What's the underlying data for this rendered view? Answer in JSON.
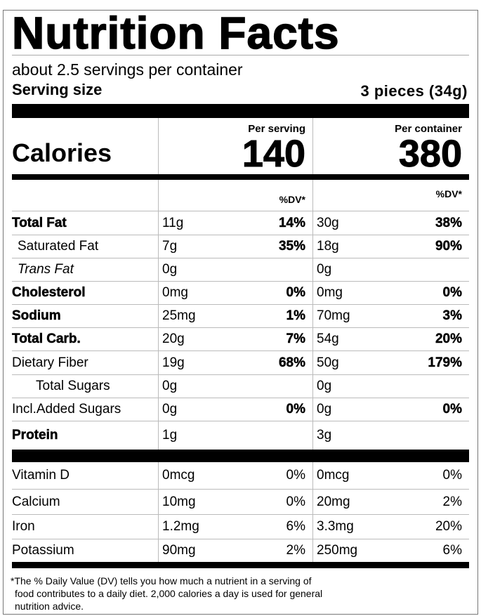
{
  "title": "Nutrition Facts",
  "servings_per_container": "about 2.5 servings per container",
  "serving_size_label": "Serving size",
  "serving_size_value": "3 pieces (34g)",
  "calories": {
    "label": "Calories",
    "per_serving_label": "Per serving",
    "per_container_label": "Per container",
    "per_serving": "140",
    "per_container": "380"
  },
  "dv_header": "%DV*",
  "nutrients": [
    {
      "name": "Total Fat",
      "bold": true,
      "indent": 0,
      "s_amt": "11g",
      "s_dv": "14%",
      "c_amt": "30g",
      "c_dv": "38%"
    },
    {
      "name": "Saturated Fat",
      "indent": 1,
      "s_amt": "7g",
      "s_dv": "35%",
      "c_amt": "18g",
      "c_dv": "90%"
    },
    {
      "name": "Trans Fat",
      "italic": true,
      "indent": 1,
      "s_amt": "0g",
      "s_dv": "",
      "c_amt": "0g",
      "c_dv": ""
    },
    {
      "name": "Cholesterol",
      "bold": true,
      "indent": 0,
      "s_amt": "0mg",
      "s_dv": "0%",
      "c_amt": "0mg",
      "c_dv": "0%"
    },
    {
      "name": "Sodium",
      "bold": true,
      "indent": 0,
      "s_amt": "25mg",
      "s_dv": "1%",
      "c_amt": "70mg",
      "c_dv": "3%"
    },
    {
      "name": "Total Carb.",
      "bold": true,
      "indent": 0,
      "s_amt": "20g",
      "s_dv": "7%",
      "c_amt": "54g",
      "c_dv": "20%"
    },
    {
      "name": "Dietary Fiber",
      "indent": 3,
      "s_amt": "19g",
      "s_dv": "68%",
      "c_amt": "50g",
      "c_dv": "179%"
    },
    {
      "name": "Total Sugars",
      "indent": 4,
      "s_amt": "0g",
      "s_dv": "",
      "c_amt": "0g",
      "c_dv": ""
    },
    {
      "name": "Incl.Added Sugars",
      "indent": 3,
      "s_amt": "0g",
      "s_dv": "0%",
      "c_amt": "0g",
      "c_dv": "0%"
    },
    {
      "name": "Protein",
      "bold": true,
      "indent": 0,
      "s_amt": "1g",
      "s_dv": "",
      "c_amt": "3g",
      "c_dv": ""
    }
  ],
  "vitamins": [
    {
      "name": "Vitamin D",
      "s_amt": "0mcg",
      "s_dv": "0%",
      "c_amt": "0mcg",
      "c_dv": "0%"
    },
    {
      "name": "Calcium",
      "s_amt": "10mg",
      "s_dv": "0%",
      "c_amt": "20mg",
      "c_dv": "2%"
    },
    {
      "name": "Iron",
      "s_amt": "1.2mg",
      "s_dv": "6%",
      "c_amt": "3.3mg",
      "c_dv": "20%"
    },
    {
      "name": "Potassium",
      "s_amt": "90mg",
      "s_dv": "2%",
      "c_amt": "250mg",
      "c_dv": "6%"
    }
  ],
  "footnote": {
    "line1": "*The % Daily Value (DV) tells you how much a nutrient in a serving of",
    "line2": "food contributes to a daily diet. 2,000 calories a day is used for general",
    "line3": "nutrition advice."
  }
}
